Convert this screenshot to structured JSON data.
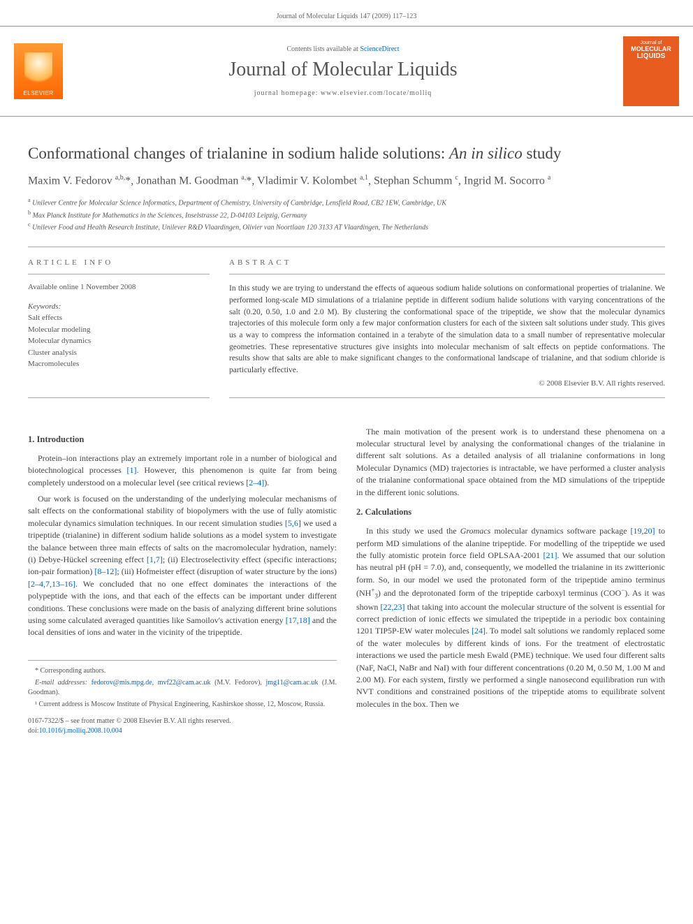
{
  "header": {
    "citation": "Journal of Molecular Liquids 147 (2009) 117–123"
  },
  "banner": {
    "publisher": "ELSEVIER",
    "contents_prefix": "Contents lists available at ",
    "contents_link": "ScienceDirect",
    "journal_title": "Journal of Molecular Liquids",
    "homepage_label": "journal homepage: www.elsevier.com/locate/molliq",
    "cover_line1": "Journal of",
    "cover_line2": "MOLECULAR",
    "cover_line3": "LIQUIDS"
  },
  "article": {
    "title_main": "Conformational changes of trialanine in sodium halide solutions: ",
    "title_italic": "An in silico",
    "title_tail": " study",
    "authors_html": "Maxim V. Fedorov <sup>a,b,</sup>*, Jonathan M. Goodman <sup>a,</sup>*, Vladimir V. Kolombet <sup>a,1</sup>, Stephan Schumm <sup>c</sup>, Ingrid M. Socorro <sup>a</sup>",
    "affiliations": [
      {
        "sup": "a",
        "text": "Unilever Centre for Molecular Science Informatics, Department of Chemistry, University of Cambridge, Lensfield Road, CB2 1EW, Cambridge, UK"
      },
      {
        "sup": "b",
        "text": "Max Planck Institute for Mathematics in the Sciences, Inselstrasse 22, D-04103 Leipzig, Germany"
      },
      {
        "sup": "c",
        "text": "Unilever Food and Health Research Institute, Unilever R&D Vlaardingen, Olivier van Noortlaan 120 3133 AT Vlaardingen, The Netherlands"
      }
    ]
  },
  "info": {
    "label": "ARTICLE INFO",
    "available": "Available online 1 November 2008",
    "kw_label": "Keywords:",
    "keywords": [
      "Salt effects",
      "Molecular modeling",
      "Molecular dynamics",
      "Cluster analysis",
      "Macromolecules"
    ]
  },
  "abstract": {
    "label": "ABSTRACT",
    "text": "In this study we are trying to understand the effects of aqueous sodium halide solutions on conformational properties of trialanine. We performed long-scale MD simulations of a trialanine peptide in different sodium halide solutions with varying concentrations of the salt (0.20, 0.50, 1.0 and 2.0 M). By clustering the conformational space of the tripeptide, we show that the molecular dynamics trajectories of this molecule form only a few major conformation clusters for each of the sixteen salt solutions under study. This gives us a way to compress the information contained in a terabyte of the simulation data to a small number of representative molecular geometries. These representative structures give insights into molecular mechanism of salt effects on peptide conformations. The results show that salts are able to make significant changes to the conformational landscape of trialanine, and that sodium chloride is particularly effective.",
    "copyright": "© 2008 Elsevier B.V. All rights reserved."
  },
  "sections": {
    "intro_title": "1. Introduction",
    "calc_title": "2. Calculations",
    "intro_p1": "Protein–ion interactions play an extremely important role in a number of biological and biotechnological processes [1]. However, this phenomenon is quite far from being completely understood on a molecular level (see critical reviews [2–4]).",
    "intro_p2": "Our work is focused on the understanding of the underlying molecular mechanisms of salt effects on the conformational stability of biopolymers with the use of fully atomistic molecular dynamics simulation techniques. In our recent simulation studies [5,6] we used a tripeptide (trialanine) in different sodium halide solutions as a model system to investigate the balance between three main effects of salts on the macromolecular hydration, namely: (i) Debye-Hückel screening effect [1,7]; (ii) Electroselectivity effect (specific interactions; ion-pair formation) [8–12]; (iii) Hofmeister effect (disruption of water structure by the ions) [2–4,7,13–16]. We concluded that no one effect dominates the interactions of the polypeptide with the ions, and that each of the effects can be important under different conditions. These conclusions were made on the basis of analyzing different brine solutions using some calculated averaged quantities like Samoilov's activation energy [17,18] and the local densities of ions and water in the vicinity of the tripeptide.",
    "intro_p3": "The main motivation of the present work is to understand these phenomena on a molecular structural level by analysing the conformational changes of the trialanine in different salt solutions. As a detailed analysis of all trialanine conformations in long Molecular Dynamics (MD) trajectories is intractable, we have performed a cluster analysis of the trialanine conformational space obtained from the MD simulations of the tripeptide in the different ionic solutions.",
    "calc_p1a": "In this study we used the ",
    "calc_p1_italic": "Gromacs",
    "calc_p1b": " molecular dynamics software package [19,20] to perform MD simulations of the alanine tripeptide. For modelling of the tripeptide we used the fully atomistic protein force field OPLSAA-2001 [21]. We assumed that our solution has neutral pH (pH = 7.0), and, consequently, we modelled the trialanine in its zwitterionic form. So, in our model we used the protonated form of the tripeptide amino terminus (NH⁺₃) and the deprotonated form of the tripeptide carboxyl terminus (COO⁻). As it was shown [22,23] that taking into account the molecular structure of the solvent is essential for correct prediction of ionic effects we simulated the tripeptide in a periodic box containing 1201 TIP5P-EW water molecules [24]. To model salt solutions we randomly replaced some of the water molecules by different kinds of ions. For the treatment of electrostatic interactions we used the particle mesh Ewald (PME) technique. We used four different salts (NaF, NaCl, NaBr and NaI) with four different concentrations (0.20 M, 0.50 M, 1.00 M and 2.00 M). For each system, firstly we performed a single nanosecond equilibration run with NVT conditions and constrained positions of the tripeptide atoms to equilibrate solvent molecules in the box. Then we"
  },
  "footnotes": {
    "corr_label": "* Corresponding authors.",
    "email_label": "E-mail addresses:",
    "email1": "fedorov@mis.mpg.de",
    "email1b": "mvf22@cam.ac.uk",
    "email1_name": " (M.V. Fedorov),",
    "email2": "jmg11@cam.ac.uk",
    "email2_name": " (J.M. Goodman).",
    "note1": "¹ Current address is Moscow Institute of Physical Engineering, Kashirskoe shosse, 12, Moscow, Russia."
  },
  "footer": {
    "issn": "0167-7322/$ – see front matter © 2008 Elsevier B.V. All rights reserved.",
    "doi_label": "doi:",
    "doi": "10.1016/j.molliq.2008.10.004"
  },
  "refs": {
    "r1": "[1]",
    "r24": "[2–4]",
    "r56": "[5,6]",
    "r17": "[1,7]",
    "r812": "[8–12]",
    "r2416": "[2–4,7,13–16]",
    "r1718": "[17,18]",
    "r1920": "[19,20]",
    "r21": "[21]",
    "r2223": "[22,23]",
    "r24b": "[24]"
  }
}
